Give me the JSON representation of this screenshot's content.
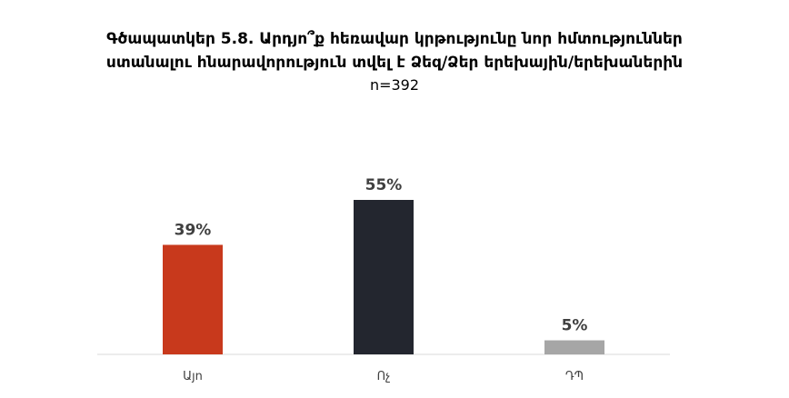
{
  "chart_data": {
    "type": "bar",
    "title": "Գծապատկեր 5.8. Արդյո՞ք հեռավար կրթությունը նոր հմտություններ ստանալու հնարավորություն տվել է Ձեզ/Ձեր երեխային/երեխաներին",
    "title_lines": [
      "Գծապատկեր 5.8. Արդյո՞ք հեռավար կրթությունը նոր հմտություններ",
      "ստանալու հնարավորություն տվել է Ձեզ/Ձեր երեխային/երեխաներին"
    ],
    "subtitle": "n=392",
    "categories": [
      "Այո",
      "Ոչ",
      "ԴՊ"
    ],
    "values": [
      39,
      55,
      5
    ],
    "value_labels": [
      "39%",
      "55%",
      "5%"
    ],
    "colors": [
      "#c8391c",
      "#23262f",
      "#a6a6a6"
    ],
    "ylim": [
      0,
      66
    ],
    "grid": false,
    "legend": "none",
    "xlabel": "",
    "ylabel": ""
  }
}
